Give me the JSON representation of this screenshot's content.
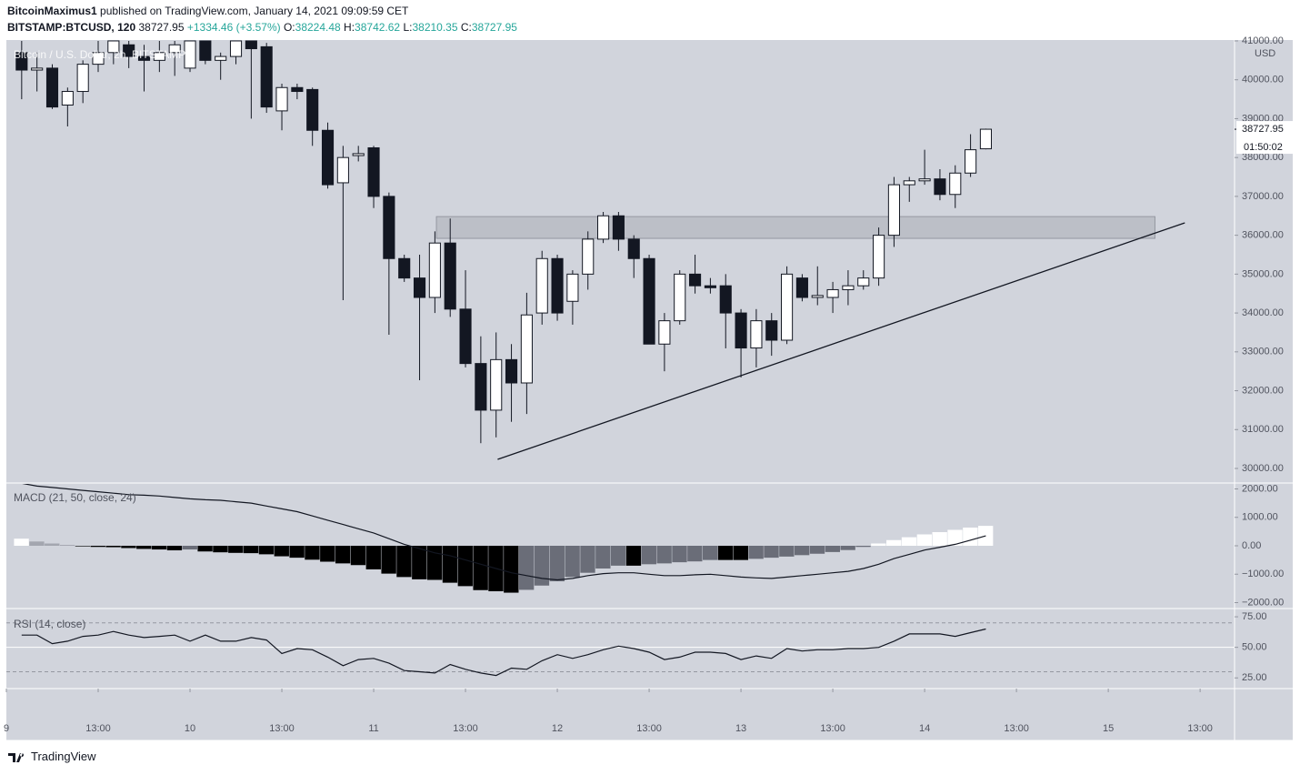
{
  "header": {
    "author": "BitcoinMaximus1",
    "published": "published on TradingView.com, January 14, 2021 09:09:59 CET",
    "symbol": "BITSTAMP:BTCUSD, 120",
    "last": 38727.95,
    "change": "+1334.46 (+3.57%)",
    "ohlc": [
      {
        "label": "O:",
        "value": 38224.48
      },
      {
        "label": "H:",
        "value": 38742.62
      },
      {
        "label": "L:",
        "value": 38210.35
      },
      {
        "label": "C:",
        "value": 38727.95
      }
    ]
  },
  "chart_data": [
    {
      "type": "candlestick",
      "title": "Bitcoin / U.S. Dollar, 2h, BITSTAMP",
      "y_unit": "USD",
      "x": [
        2,
        4,
        6,
        8,
        10,
        12,
        14,
        16,
        18,
        20,
        22,
        24,
        26,
        28,
        30,
        32,
        34,
        36,
        38,
        40,
        42,
        44,
        46,
        48,
        50,
        52,
        54,
        56,
        58,
        60,
        62,
        64,
        66,
        68,
        70,
        72,
        74,
        76,
        78,
        80,
        82,
        84,
        86,
        88,
        90,
        92,
        94,
        96,
        98,
        100,
        102,
        104,
        106,
        108,
        110,
        112,
        114,
        116,
        118,
        120,
        122,
        124,
        126,
        128
      ],
      "open": [
        40700,
        40250,
        40300,
        39350,
        39700,
        40400,
        40700,
        40900,
        40600,
        40500,
        40700,
        40300,
        41000,
        40500,
        40600,
        41000,
        40850,
        39200,
        39800,
        39750,
        38700,
        37350,
        38050,
        38250,
        37000,
        35400,
        34900,
        34400,
        35800,
        34100,
        32700,
        31500,
        32800,
        32200,
        34000,
        35400,
        34300,
        35000,
        35900,
        36500,
        35900,
        35400,
        33200,
        33800,
        35000,
        34700,
        34700,
        34000,
        33100,
        33800,
        33300,
        34900,
        34400,
        34400,
        34600,
        34700,
        34900,
        36000,
        37300,
        37400,
        37450,
        37050,
        37600,
        38224.48
      ],
      "high": [
        41000,
        40700,
        40400,
        39800,
        40500,
        41000,
        41000,
        41000,
        40900,
        41000,
        41000,
        41000,
        41000,
        40700,
        41000,
        41000,
        40950,
        39900,
        39900,
        39800,
        38900,
        38300,
        38300,
        38300,
        37100,
        35500,
        35500,
        36100,
        36430,
        35100,
        33400,
        33500,
        33200,
        34520,
        35600,
        35500,
        35100,
        36100,
        36600,
        36600,
        36000,
        35500,
        34000,
        35100,
        35500,
        34900,
        35000,
        34100,
        34100,
        34000,
        35200,
        35000,
        35200,
        34800,
        35100,
        35100,
        36200,
        37500,
        37500,
        38200,
        37700,
        37800,
        38600,
        38742.62
      ],
      "low": [
        39500,
        39700,
        39250,
        38800,
        39400,
        40200,
        40400,
        40300,
        39700,
        40200,
        40100,
        40200,
        40400,
        40000,
        40400,
        39000,
        39150,
        38700,
        39500,
        38300,
        37200,
        34330,
        37900,
        36700,
        33440,
        34800,
        32270,
        34000,
        33900,
        32600,
        30650,
        30800,
        31200,
        31400,
        33700,
        33800,
        33700,
        34600,
        35800,
        35600,
        34900,
        33200,
        32500,
        33700,
        34500,
        34500,
        33090,
        32340,
        32600,
        32900,
        33200,
        34300,
        34200,
        34000,
        34200,
        34600,
        34700,
        35700,
        36860,
        37300,
        36900,
        36700,
        37500,
        38210.35
      ],
      "close": [
        40250,
        40300,
        39300,
        39700,
        40400,
        40700,
        41000,
        40600,
        40500,
        40700,
        40900,
        41000,
        40500,
        40600,
        41000,
        40800,
        39300,
        39800,
        39700,
        38700,
        37300,
        38000,
        38100,
        37000,
        35400,
        34900,
        34400,
        35800,
        34100,
        32700,
        31500,
        32800,
        32200,
        33950,
        35400,
        34000,
        35000,
        35900,
        36500,
        35900,
        35400,
        33200,
        33800,
        35000,
        34700,
        34650,
        34000,
        33100,
        33800,
        33300,
        35000,
        34400,
        34450,
        34600,
        34700,
        34900,
        36000,
        37300,
        37400,
        37450,
        37050,
        37600,
        38200,
        38727.95
      ],
      "colors": {
        "up": "#ffffff",
        "down": "#131722"
      },
      "xlim": [
        0,
        160.5
      ],
      "xticks": [
        {
          "value": 0,
          "label": "9"
        },
        {
          "value": 12,
          "label": "13:00"
        },
        {
          "value": 24,
          "label": "10"
        },
        {
          "value": 36,
          "label": "13:00"
        },
        {
          "value": 48,
          "label": "11"
        },
        {
          "value": 60,
          "label": "13:00"
        },
        {
          "value": 72,
          "label": "12"
        },
        {
          "value": 84,
          "label": "13:00"
        },
        {
          "value": 96,
          "label": "13"
        },
        {
          "value": 108,
          "label": "13:00"
        },
        {
          "value": 120,
          "label": "14"
        },
        {
          "value": 132,
          "label": "13:00"
        },
        {
          "value": 144,
          "label": "15"
        },
        {
          "value": 156,
          "label": "13:00"
        }
      ],
      "ylim": [
        29649,
        41023
      ],
      "yticks": [
        {
          "value": 30000,
          "label": "30000.00"
        },
        {
          "value": 31000,
          "label": "31000.00"
        },
        {
          "value": 32000,
          "label": "32000.00"
        },
        {
          "value": 33000,
          "label": "33000.00"
        },
        {
          "value": 34000,
          "label": "34000.00"
        },
        {
          "value": 35000,
          "label": "35000.00"
        },
        {
          "value": 36000,
          "label": "36000.00"
        },
        {
          "value": 37000,
          "label": "37000.00"
        },
        {
          "value": 38000,
          "label": "38000.00"
        },
        {
          "value": 39000,
          "label": "39000.00"
        },
        {
          "value": 40000,
          "label": "40000.00"
        },
        {
          "value": 41000,
          "label": "41000.00"
        }
      ],
      "last_price": 38727.95,
      "countdown": "01:50:02",
      "zone": {
        "x": [
          56.2,
          150.1
        ],
        "y": [
          35920,
          36480
        ],
        "color": "#9598a1"
      },
      "trendline": {
        "x": [
          64.2,
          154
        ],
        "y": [
          30234,
          36319
        ],
        "color": "#131722"
      }
    },
    {
      "type": "macd",
      "title": "MACD (21, 50, close, 24)",
      "histogram": {
        "values": [
          250,
          150,
          80,
          30,
          -20,
          -40,
          -50,
          -80,
          -110,
          -130,
          -160,
          -130,
          -200,
          -230,
          -250,
          -260,
          -300,
          -370,
          -420,
          -490,
          -560,
          -620,
          -680,
          -830,
          -980,
          -1100,
          -1180,
          -1200,
          -1300,
          -1420,
          -1560,
          -1600,
          -1650,
          -1550,
          -1400,
          -1250,
          -1100,
          -950,
          -800,
          -700,
          -700,
          -650,
          -620,
          -580,
          -550,
          -500,
          -500,
          -500,
          -460,
          -420,
          -380,
          -330,
          -280,
          -220,
          -150,
          -40,
          80,
          200,
          300,
          400,
          480,
          560,
          640,
          700
        ],
        "colors": {
          "grow_above": "#ffffff",
          "fall_above": "#a3a6af",
          "grow_below": "#000000",
          "fall_below": "#6a6d78"
        }
      },
      "line": {
        "values": [
          2200,
          2100,
          2050,
          2000,
          1950,
          1900,
          1850,
          1800,
          1780,
          1750,
          1700,
          1650,
          1620,
          1600,
          1550,
          1500,
          1400,
          1300,
          1200,
          1050,
          900,
          750,
          600,
          450,
          250,
          50,
          -100,
          -250,
          -350,
          -500,
          -650,
          -800,
          -950,
          -1050,
          -1150,
          -1200,
          -1150,
          -1050,
          -980,
          -950,
          -950,
          -1000,
          -1050,
          -1050,
          -1020,
          -1000,
          -1050,
          -1100,
          -1130,
          -1150,
          -1100,
          -1050,
          -1000,
          -950,
          -900,
          -800,
          -650,
          -450,
          -300,
          -150,
          -50,
          50,
          200,
          350
        ],
        "color": "#131722"
      },
      "ylim": [
        -2176,
        2176
      ],
      "yticks": [
        {
          "value": 2000,
          "label": "2000.00"
        },
        {
          "value": 1000,
          "label": "1000.00"
        },
        {
          "value": 0,
          "label": "0.00"
        },
        {
          "value": -1000,
          "label": "−1000.00"
        },
        {
          "value": -2000,
          "label": "−2000.00"
        }
      ]
    },
    {
      "type": "line",
      "title": "RSI (14, close)",
      "values": [
        60,
        60,
        53,
        55,
        59,
        60,
        63,
        60,
        58,
        59,
        60,
        55,
        60,
        55,
        55,
        58,
        56,
        45,
        49,
        48,
        42,
        35,
        40,
        41,
        37,
        31,
        30,
        29,
        36,
        32,
        29,
        27,
        33,
        32,
        39,
        44,
        41,
        44,
        48,
        51,
        49,
        46,
        40,
        42,
        46,
        46,
        45,
        40,
        43,
        41,
        49,
        47,
        48,
        48,
        49,
        49,
        50,
        55,
        61,
        61,
        61,
        59,
        62,
        65
      ],
      "color": "#131722",
      "ylim": [
        17,
        81
      ],
      "yticks": [
        {
          "value": 75,
          "label": "75.00"
        },
        {
          "value": 50,
          "label": "50.00"
        },
        {
          "value": 25,
          "label": "25.00"
        }
      ],
      "bands": [
        70,
        30
      ]
    }
  ],
  "footer": {
    "brand": "TradingView"
  }
}
